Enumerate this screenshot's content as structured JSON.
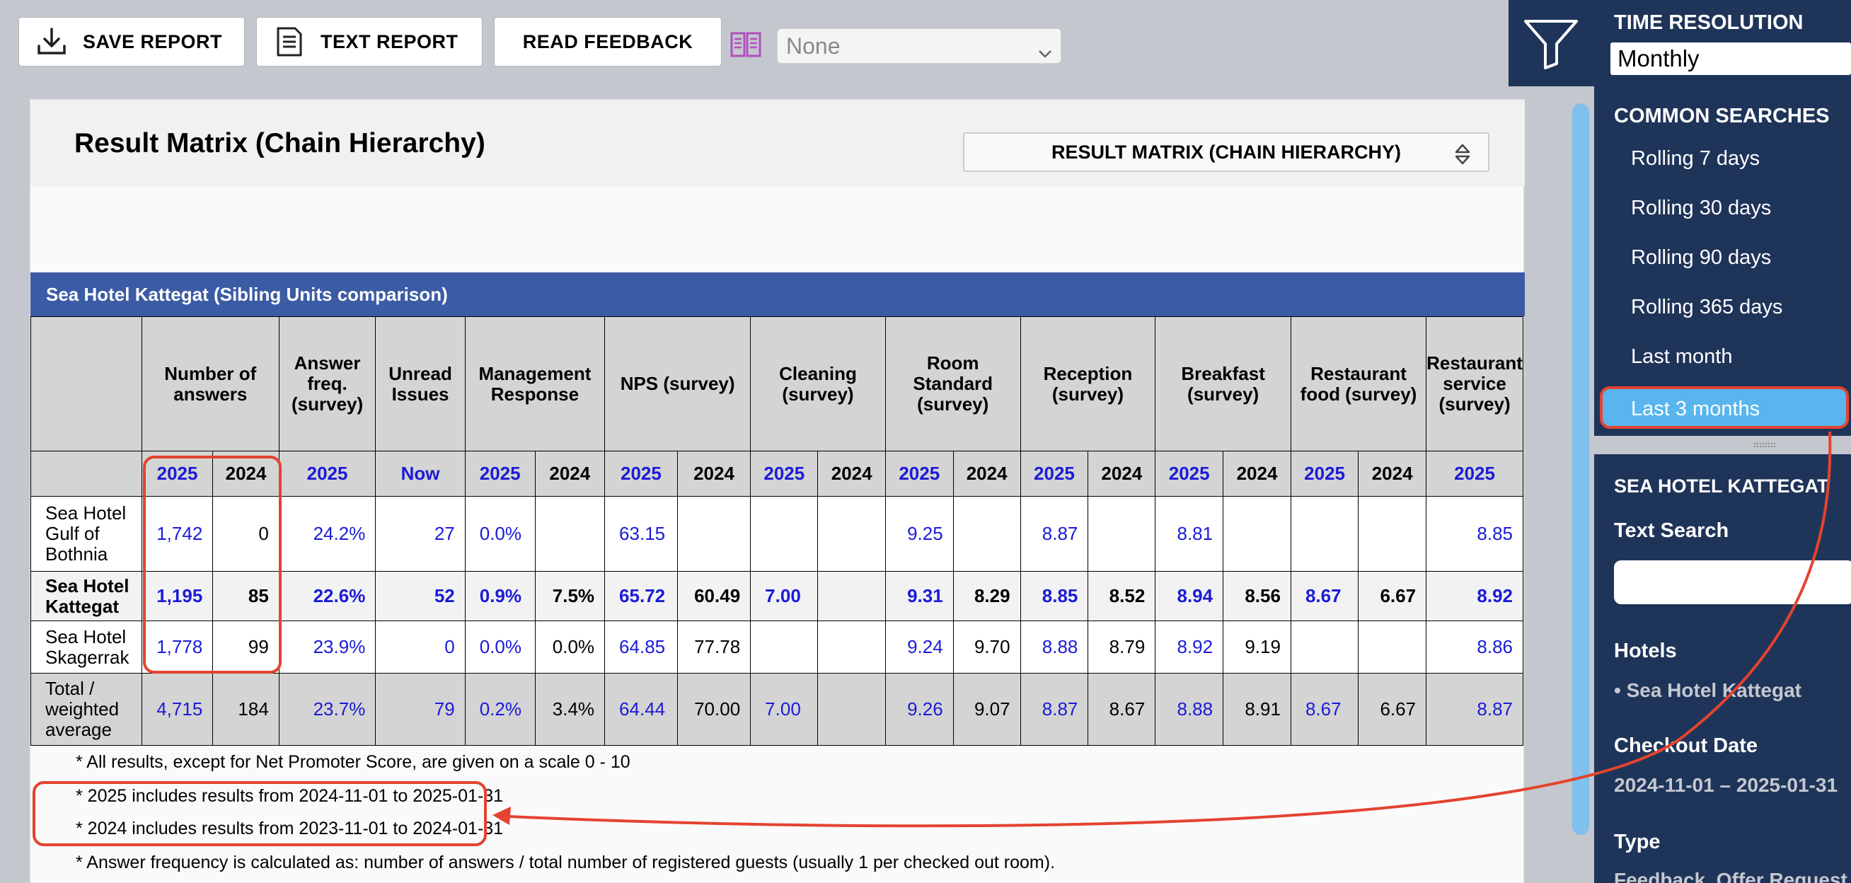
{
  "toolbar": {
    "save_report": "SAVE REPORT",
    "text_report": "TEXT REPORT",
    "read_feedback": "READ FEEDBACK",
    "selector_value": "None"
  },
  "filters": {
    "time_resolution_label": "TIME RESOLUTION",
    "time_resolution_value": "Monthly",
    "common_searches_title": "COMMON SEARCHES",
    "common_searches": [
      "Rolling 7 days",
      "Rolling 30 days",
      "Rolling 90 days",
      "Rolling 365 days",
      "Last month"
    ],
    "active_search": "Last 3 months",
    "scope_title": "SEA HOTEL KATTEGAT",
    "text_search_label": "Text Search",
    "hotels_label": "Hotels",
    "hotels_value": "• Sea Hotel Kattegat",
    "checkout_label": "Checkout Date",
    "checkout_value": "2024-11-01 – 2025-01-31",
    "type_label": "Type",
    "type_value": "Feedback, Offer Request"
  },
  "report": {
    "title": "Result Matrix (Chain Hierarchy)",
    "view_select": "RESULT MATRIX (CHAIN HIERARCHY)",
    "banner": "Sea Hotel Kattegat (Sibling Units comparison)",
    "columns": {
      "answers": "Number of answers",
      "answer_freq": "Answer freq. (survey)",
      "unread": "Unread Issues",
      "mgmt": "Management Response",
      "nps": "NPS (survey)",
      "cleaning": "Cleaning (survey)",
      "room": "Room Standard (survey)",
      "reception": "Reception (survey)",
      "breakfast": "Breakfast (survey)",
      "rest_food": "Restaurant food (survey)",
      "rest_service": "Restaurant service (survey)"
    },
    "years": {
      "y2025": "2025",
      "y2024": "2024",
      "now": "Now"
    },
    "rows": [
      {
        "name": "Sea Hotel Gulf of Bothnia",
        "answers_2025": "1,742",
        "answers_2024": "0",
        "freq_2025": "24.2%",
        "unread": "27",
        "mgmt_2025": "0.0%",
        "mgmt_2024": "",
        "nps_2025": "63.15",
        "nps_2024": "",
        "clean_2025": "",
        "clean_2024": "",
        "room_2025": "9.25",
        "room_2024": "",
        "recep_2025": "8.87",
        "recep_2024": "",
        "bfast_2025": "8.81",
        "bfast_2024": "",
        "food_2025": "",
        "food_2024": "",
        "serv_2025": "8.85"
      },
      {
        "name": "Sea Hotel Kattegat",
        "answers_2025": "1,195",
        "answers_2024": "85",
        "freq_2025": "22.6%",
        "unread": "52",
        "mgmt_2025": "0.9%",
        "mgmt_2024": "7.5%",
        "nps_2025": "65.72",
        "nps_2024": "60.49",
        "clean_2025": "7.00",
        "clean_2024": "",
        "room_2025": "9.31",
        "room_2024": "8.29",
        "recep_2025": "8.85",
        "recep_2024": "8.52",
        "bfast_2025": "8.94",
        "bfast_2024": "8.56",
        "food_2025": "8.67",
        "food_2024": "6.67",
        "serv_2025": "8.92"
      },
      {
        "name": "Sea Hotel Skagerrak",
        "answers_2025": "1,778",
        "answers_2024": "99",
        "freq_2025": "23.9%",
        "unread": "0",
        "mgmt_2025": "0.0%",
        "mgmt_2024": "0.0%",
        "nps_2025": "64.85",
        "nps_2024": "77.78",
        "clean_2025": "",
        "clean_2024": "",
        "room_2025": "9.24",
        "room_2024": "9.70",
        "recep_2025": "8.88",
        "recep_2024": "8.79",
        "bfast_2025": "8.92",
        "bfast_2024": "9.19",
        "food_2025": "",
        "food_2024": "",
        "serv_2025": "8.86"
      },
      {
        "name": "Total / weighted average",
        "answers_2025": "4,715",
        "answers_2024": "184",
        "freq_2025": "23.7%",
        "unread": "79",
        "mgmt_2025": "0.2%",
        "mgmt_2024": "3.4%",
        "nps_2025": "64.44",
        "nps_2024": "70.00",
        "clean_2025": "7.00",
        "clean_2024": "",
        "room_2025": "9.26",
        "room_2024": "9.07",
        "recep_2025": "8.87",
        "recep_2024": "8.67",
        "bfast_2025": "8.88",
        "bfast_2024": "8.91",
        "food_2025": "8.67",
        "food_2024": "6.67",
        "serv_2025": "8.87"
      }
    ],
    "notes": [
      "* All results, except for Net Promoter Score, are given on a scale 0 - 10",
      "* 2025 includes results from 2024-11-01 to 2025-01-31",
      "* 2024 includes results from 2023-11-01 to 2024-01-31",
      "* Answer frequency is calculated as: number of answers / total number of registered guests (usually 1 per checked out room)."
    ]
  },
  "colors": {
    "accent_navy": "#1f3459",
    "banner_blue": "#3b5ba5",
    "value_blue": "#1b1bd8",
    "highlight_red": "#e4432f",
    "active_item": "#58b5ee"
  }
}
